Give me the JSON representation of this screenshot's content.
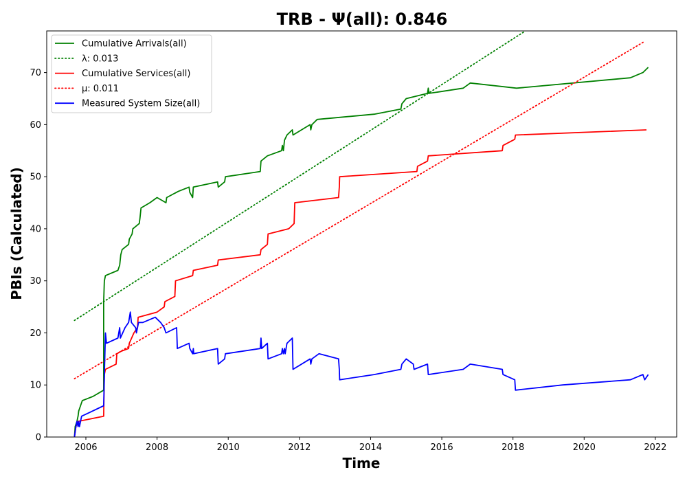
{
  "chart_data": {
    "type": "line",
    "title": "TRB -  Ψ(all): 0.846",
    "xlabel": "Time",
    "ylabel": "PBIs (Calculated)",
    "xlim": [
      2004.9,
      2022.6
    ],
    "ylim": [
      0,
      78
    ],
    "x_ticks": [
      2006,
      2008,
      2010,
      2012,
      2014,
      2016,
      2018,
      2020,
      2022
    ],
    "y_ticks": [
      0,
      10,
      20,
      30,
      40,
      50,
      60,
      70
    ],
    "grid": false,
    "legend_position": "top-left",
    "series": [
      {
        "name": "Cumulative Arrivals(all)",
        "style": "solid",
        "color": "#008000",
        "points": [
          [
            2005.68,
            0
          ],
          [
            2005.7,
            2
          ],
          [
            2005.75,
            3
          ],
          [
            2005.78,
            4
          ],
          [
            2005.8,
            5
          ],
          [
            2005.85,
            6
          ],
          [
            2005.9,
            7
          ],
          [
            2006.2,
            7.8
          ],
          [
            2006.5,
            9
          ],
          [
            2006.5,
            26
          ],
          [
            2006.52,
            30
          ],
          [
            2006.55,
            31
          ],
          [
            2006.9,
            32
          ],
          [
            2006.95,
            33
          ],
          [
            2006.98,
            35
          ],
          [
            2007.02,
            36
          ],
          [
            2007.2,
            37
          ],
          [
            2007.22,
            38
          ],
          [
            2007.3,
            39
          ],
          [
            2007.32,
            40
          ],
          [
            2007.5,
            41
          ],
          [
            2007.52,
            42
          ],
          [
            2007.55,
            44
          ],
          [
            2007.8,
            45
          ],
          [
            2008.0,
            46
          ],
          [
            2008.25,
            45
          ],
          [
            2008.27,
            46
          ],
          [
            2008.6,
            47.2
          ],
          [
            2008.9,
            48
          ],
          [
            2008.92,
            47
          ],
          [
            2009.0,
            46
          ],
          [
            2009.02,
            48
          ],
          [
            2009.7,
            49
          ],
          [
            2009.72,
            48
          ],
          [
            2009.9,
            49
          ],
          [
            2009.92,
            50
          ],
          [
            2010.9,
            51
          ],
          [
            2010.92,
            53
          ],
          [
            2011.1,
            54
          ],
          [
            2011.5,
            55
          ],
          [
            2011.52,
            56
          ],
          [
            2011.55,
            55
          ],
          [
            2011.58,
            57
          ],
          [
            2011.65,
            58
          ],
          [
            2011.8,
            59
          ],
          [
            2011.82,
            58
          ],
          [
            2012.3,
            60
          ],
          [
            2012.32,
            59
          ],
          [
            2012.35,
            60
          ],
          [
            2012.5,
            61
          ],
          [
            2014.1,
            62
          ],
          [
            2014.85,
            63
          ],
          [
            2014.88,
            64
          ],
          [
            2015.0,
            65
          ],
          [
            2015.6,
            66
          ],
          [
            2015.62,
            67
          ],
          [
            2015.64,
            66
          ],
          [
            2016.6,
            67
          ],
          [
            2016.8,
            68
          ],
          [
            2018.1,
            67
          ],
          [
            2021.3,
            69
          ],
          [
            2021.65,
            70
          ],
          [
            2021.8,
            71
          ]
        ]
      },
      {
        "name": "λ: 0.013",
        "style": "dotted",
        "color": "#008000",
        "points": [
          [
            2005.68,
            22.4
          ],
          [
            2018.35,
            78
          ]
        ]
      },
      {
        "name": "Cumulative Services(all)",
        "style": "solid",
        "color": "#ff0000",
        "points": [
          [
            2005.68,
            0
          ],
          [
            2005.72,
            2
          ],
          [
            2005.78,
            3
          ],
          [
            2006.5,
            4
          ],
          [
            2006.52,
            12
          ],
          [
            2006.55,
            13
          ],
          [
            2006.85,
            14
          ],
          [
            2006.87,
            16
          ],
          [
            2007.0,
            16.5
          ],
          [
            2007.2,
            17
          ],
          [
            2007.22,
            18
          ],
          [
            2007.35,
            20
          ],
          [
            2007.45,
            21
          ],
          [
            2007.47,
            23
          ],
          [
            2008.0,
            24
          ],
          [
            2008.2,
            25
          ],
          [
            2008.22,
            26
          ],
          [
            2008.5,
            27
          ],
          [
            2008.52,
            30
          ],
          [
            2009.0,
            31
          ],
          [
            2009.02,
            32
          ],
          [
            2009.7,
            33
          ],
          [
            2009.72,
            34
          ],
          [
            2010.9,
            35
          ],
          [
            2010.92,
            36
          ],
          [
            2011.1,
            37
          ],
          [
            2011.12,
            39
          ],
          [
            2011.7,
            40
          ],
          [
            2011.85,
            41
          ],
          [
            2011.87,
            45
          ],
          [
            2013.1,
            46
          ],
          [
            2013.12,
            48
          ],
          [
            2013.13,
            50
          ],
          [
            2015.3,
            51
          ],
          [
            2015.32,
            52
          ],
          [
            2015.6,
            53
          ],
          [
            2015.62,
            54
          ],
          [
            2017.7,
            55
          ],
          [
            2017.72,
            56
          ],
          [
            2018.0,
            57
          ],
          [
            2018.05,
            57.2
          ],
          [
            2018.07,
            58
          ],
          [
            2021.75,
            59
          ]
        ]
      },
      {
        "name": "μ: 0.011",
        "style": "dotted",
        "color": "#ff0000",
        "points": [
          [
            2005.68,
            11.2
          ],
          [
            2021.7,
            76
          ]
        ]
      },
      {
        "name": "Measured System Size(all)",
        "style": "solid",
        "color": "#0000ff",
        "points": [
          [
            2005.68,
            0
          ],
          [
            2005.7,
            1
          ],
          [
            2005.72,
            2
          ],
          [
            2005.75,
            3
          ],
          [
            2005.78,
            2
          ],
          [
            2005.8,
            3
          ],
          [
            2005.82,
            2
          ],
          [
            2005.88,
            4
          ],
          [
            2006.5,
            6
          ],
          [
            2006.52,
            12
          ],
          [
            2006.55,
            20
          ],
          [
            2006.58,
            18
          ],
          [
            2006.9,
            19
          ],
          [
            2006.95,
            21
          ],
          [
            2006.97,
            19
          ],
          [
            2007.1,
            21
          ],
          [
            2007.2,
            22
          ],
          [
            2007.25,
            24
          ],
          [
            2007.28,
            22
          ],
          [
            2007.4,
            21
          ],
          [
            2007.42,
            20
          ],
          [
            2007.45,
            21
          ],
          [
            2007.48,
            22
          ],
          [
            2007.6,
            22
          ],
          [
            2007.95,
            23
          ],
          [
            2008.1,
            22
          ],
          [
            2008.2,
            21
          ],
          [
            2008.25,
            20
          ],
          [
            2008.55,
            21
          ],
          [
            2008.57,
            17
          ],
          [
            2008.9,
            18
          ],
          [
            2008.92,
            17
          ],
          [
            2009.0,
            16
          ],
          [
            2009.02,
            17
          ],
          [
            2009.03,
            16
          ],
          [
            2009.7,
            17
          ],
          [
            2009.72,
            14
          ],
          [
            2009.9,
            15
          ],
          [
            2009.92,
            16
          ],
          [
            2010.9,
            17
          ],
          [
            2010.92,
            19
          ],
          [
            2010.94,
            17
          ],
          [
            2011.1,
            18
          ],
          [
            2011.12,
            15
          ],
          [
            2011.5,
            16
          ],
          [
            2011.52,
            17
          ],
          [
            2011.55,
            16
          ],
          [
            2011.58,
            17
          ],
          [
            2011.6,
            16
          ],
          [
            2011.65,
            18
          ],
          [
            2011.8,
            19
          ],
          [
            2011.82,
            13
          ],
          [
            2012.3,
            15
          ],
          [
            2012.32,
            14
          ],
          [
            2012.35,
            15
          ],
          [
            2012.55,
            16
          ],
          [
            2013.1,
            15
          ],
          [
            2013.12,
            13
          ],
          [
            2013.13,
            11
          ],
          [
            2014.1,
            12
          ],
          [
            2014.85,
            13
          ],
          [
            2014.88,
            14
          ],
          [
            2015.0,
            15
          ],
          [
            2015.2,
            14
          ],
          [
            2015.22,
            13
          ],
          [
            2015.6,
            14
          ],
          [
            2015.62,
            12
          ],
          [
            2016.6,
            13
          ],
          [
            2016.8,
            14
          ],
          [
            2017.7,
            13
          ],
          [
            2017.72,
            12
          ],
          [
            2018.05,
            11
          ],
          [
            2018.07,
            9
          ],
          [
            2019.4,
            10
          ],
          [
            2021.3,
            11
          ],
          [
            2021.65,
            12
          ],
          [
            2021.7,
            11
          ],
          [
            2021.8,
            12
          ]
        ]
      }
    ]
  }
}
